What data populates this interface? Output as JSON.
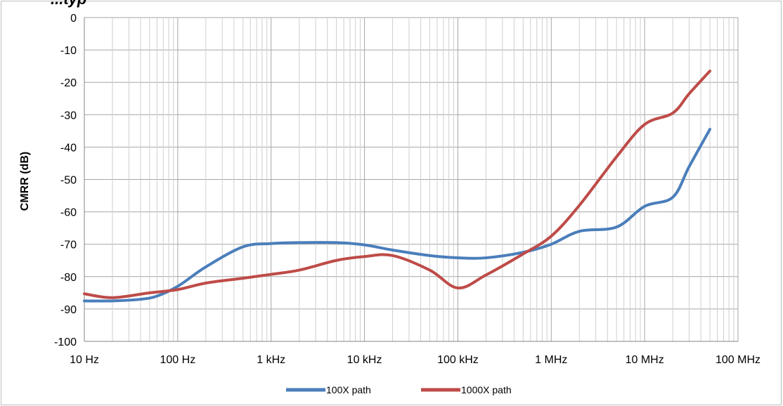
{
  "chart_data": {
    "type": "line",
    "title": "...typ",
    "xlabel": "",
    "ylabel": "CMRR (dB)",
    "x_scale": "log",
    "xlim": [
      10,
      100000000
    ],
    "ylim": [
      -100,
      0
    ],
    "x_ticks": [
      {
        "value": 10,
        "label": "10 Hz"
      },
      {
        "value": 100,
        "label": "100 Hz"
      },
      {
        "value": 1000,
        "label": "1 kHz"
      },
      {
        "value": 10000,
        "label": "10 kHz"
      },
      {
        "value": 100000,
        "label": "100 kHz"
      },
      {
        "value": 1000000,
        "label": "1 MHz"
      },
      {
        "value": 10000000,
        "label": "10 MHz"
      },
      {
        "value": 100000000,
        "label": "100 MHz"
      }
    ],
    "y_ticks": [
      {
        "value": 0,
        "label": "0"
      },
      {
        "value": -10,
        "label": "-10"
      },
      {
        "value": -20,
        "label": "-20"
      },
      {
        "value": -30,
        "label": "-30"
      },
      {
        "value": -40,
        "label": "-40"
      },
      {
        "value": -50,
        "label": "-50"
      },
      {
        "value": -60,
        "label": "-60"
      },
      {
        "value": -70,
        "label": "-70"
      },
      {
        "value": -80,
        "label": "-80"
      },
      {
        "value": -90,
        "label": "-90"
      },
      {
        "value": -100,
        "label": "-100"
      }
    ],
    "grid": true,
    "legend_position": "bottom",
    "series": [
      {
        "name": "100X path",
        "color": "#4a7ebb",
        "points": [
          [
            10,
            -87.5
          ],
          [
            20,
            -87.5
          ],
          [
            40,
            -87
          ],
          [
            60,
            -86
          ],
          [
            100,
            -83
          ],
          [
            200,
            -77
          ],
          [
            500,
            -70.8
          ],
          [
            1000,
            -69.8
          ],
          [
            2000,
            -69.5
          ],
          [
            5000,
            -69.5
          ],
          [
            10000,
            -70.2
          ],
          [
            20000,
            -71.8
          ],
          [
            50000,
            -73.5
          ],
          [
            100000,
            -74.2
          ],
          [
            200000,
            -74.2
          ],
          [
            500000,
            -72.5
          ],
          [
            1000000,
            -70
          ],
          [
            2000000,
            -66
          ],
          [
            5000000,
            -64.7
          ],
          [
            10000000,
            -58.3
          ],
          [
            20000000,
            -55.5
          ],
          [
            30000000,
            -46
          ],
          [
            50000000,
            -34.5
          ]
        ]
      },
      {
        "name": "1000X path",
        "color": "#be4b48",
        "points": [
          [
            10,
            -85.3
          ],
          [
            20,
            -86.5
          ],
          [
            50,
            -85
          ],
          [
            100,
            -84
          ],
          [
            200,
            -82
          ],
          [
            500,
            -80.5
          ],
          [
            1000,
            -79.3
          ],
          [
            2000,
            -78
          ],
          [
            5000,
            -75
          ],
          [
            10000,
            -73.8
          ],
          [
            20000,
            -73.5
          ],
          [
            50000,
            -78
          ],
          [
            100000,
            -83.5
          ],
          [
            200000,
            -79.5
          ],
          [
            500000,
            -73
          ],
          [
            1000000,
            -67.5
          ],
          [
            2000000,
            -58
          ],
          [
            5000000,
            -43
          ],
          [
            10000000,
            -33
          ],
          [
            20000000,
            -29.5
          ],
          [
            30000000,
            -23.5
          ],
          [
            50000000,
            -16.5
          ]
        ]
      }
    ]
  }
}
